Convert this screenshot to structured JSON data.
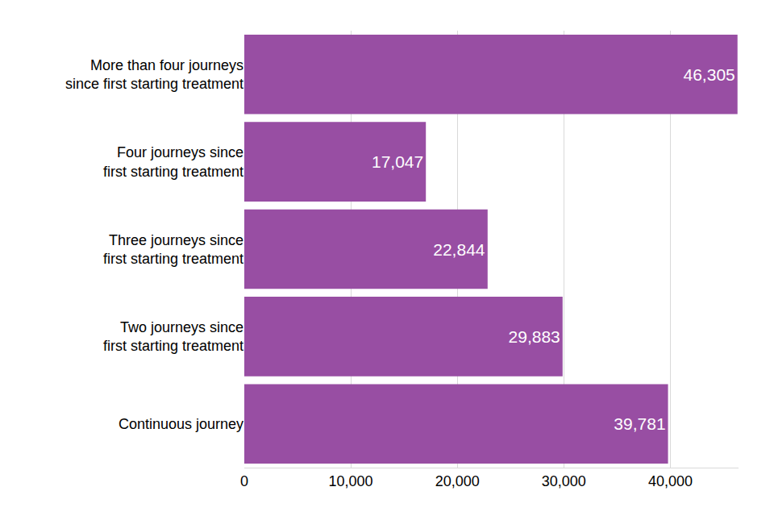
{
  "chart_data": {
    "type": "bar",
    "orientation": "horizontal",
    "categories": [
      "More than four journeys\nsince first starting treatment",
      "Four journeys since\nfirst starting treatment",
      "Three journeys since\nfirst starting treatment",
      "Two journeys since\nfirst starting treatment",
      "Continuous journey"
    ],
    "values": [
      46305,
      17047,
      22844,
      29883,
      39781
    ],
    "value_labels": [
      "46,305",
      "17,047",
      "22,844",
      "29,883",
      "39,781"
    ],
    "data_labels": true,
    "color": "#984ea3",
    "xlim": [
      0,
      46400
    ],
    "xticks": [
      0,
      {
        "value": 10000,
        "label": "10,000"
      },
      {
        "value": 20000,
        "label": "20,000"
      },
      {
        "value": 30000,
        "label": "30,000"
      },
      {
        "value": 40000,
        "label": "40,000"
      }
    ],
    "grid": true
  }
}
